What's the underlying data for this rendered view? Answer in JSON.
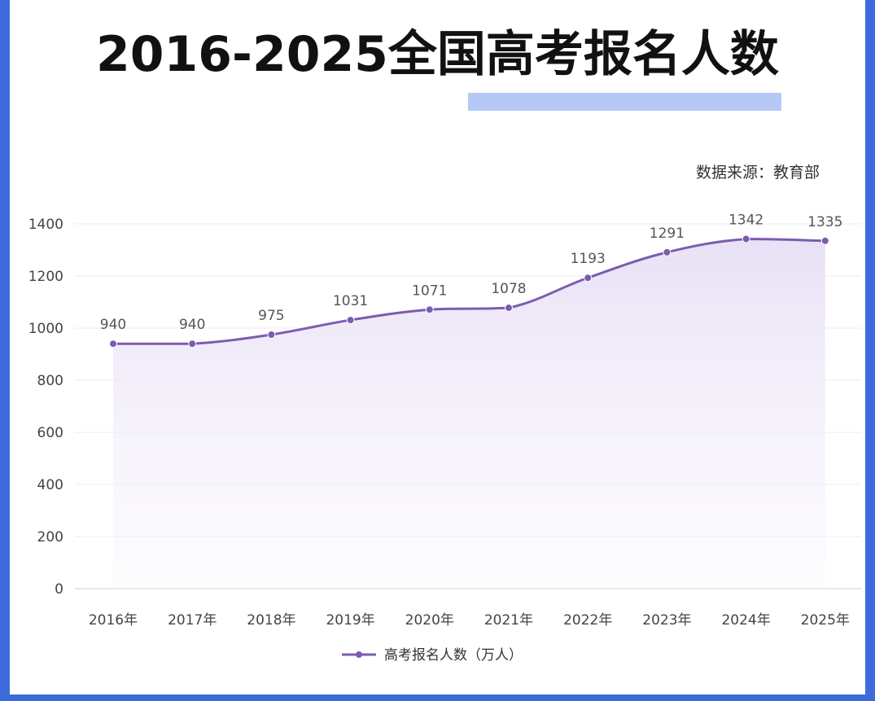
{
  "title": "2016-2025全国高考报名人数",
  "source": "数据来源：教育部",
  "colors": {
    "line": "#7b5cb0",
    "accent": "#3d6bdc",
    "underline": "#a9c0f4",
    "area": "#ece6f7"
  },
  "chart_data": {
    "type": "line",
    "title": "2016-2025全国高考报名人数",
    "categories": [
      "2016年",
      "2017年",
      "2018年",
      "2019年",
      "2020年",
      "2021年",
      "2022年",
      "2023年",
      "2024年",
      "2025年"
    ],
    "series": [
      {
        "name": "高考报名人数（万人）",
        "values": [
          940,
          940,
          975,
          1031,
          1071,
          1078,
          1193,
          1291,
          1342,
          1335
        ]
      }
    ],
    "y_ticks": [
      0,
      200,
      400,
      600,
      800,
      1000,
      1200,
      1400
    ],
    "ylim": [
      0,
      1400
    ],
    "grid": true,
    "legend": "bottom-center",
    "smooth": true,
    "area_fill": true
  }
}
